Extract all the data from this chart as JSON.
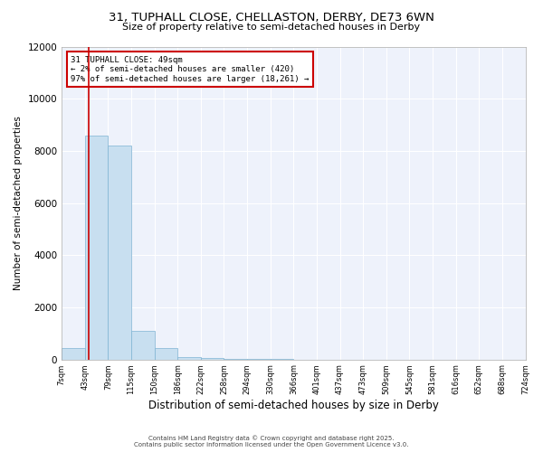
{
  "title_line1": "31, TUPHALL CLOSE, CHELLASTON, DERBY, DE73 6WN",
  "title_line2": "Size of property relative to semi-detached houses in Derby",
  "xlabel": "Distribution of semi-detached houses by size in Derby",
  "ylabel": "Number of semi-detached properties",
  "bin_labels": [
    "7sqm",
    "43sqm",
    "79sqm",
    "115sqm",
    "150sqm",
    "186sqm",
    "222sqm",
    "258sqm",
    "294sqm",
    "330sqm",
    "366sqm",
    "401sqm",
    "437sqm",
    "473sqm",
    "509sqm",
    "545sqm",
    "581sqm",
    "616sqm",
    "652sqm",
    "688sqm",
    "724sqm"
  ],
  "bar_heights": [
    420,
    8600,
    8200,
    1100,
    420,
    100,
    50,
    20,
    8,
    3,
    2,
    1,
    1,
    0,
    0,
    0,
    0,
    0,
    0,
    0
  ],
  "bar_color": "#c8dff0",
  "bar_edge_color": "#7fb3d3",
  "bin_edges": [
    7,
    43,
    79,
    115,
    150,
    186,
    222,
    258,
    294,
    330,
    366,
    401,
    437,
    473,
    509,
    545,
    581,
    616,
    652,
    688,
    724
  ],
  "property_size": 49,
  "property_label": "31 TUPHALL CLOSE: 49sqm",
  "annotation_line2": "← 2% of semi-detached houses are smaller (420)",
  "annotation_line3": "97% of semi-detached houses are larger (18,261) →",
  "red_line_color": "#cc0000",
  "annotation_box_color": "#cc0000",
  "ylim": [
    0,
    12000
  ],
  "yticks": [
    0,
    2000,
    4000,
    6000,
    8000,
    10000,
    12000
  ],
  "background_color": "#eef2fb",
  "footer_line1": "Contains HM Land Registry data © Crown copyright and database right 2025.",
  "footer_line2": "Contains public sector information licensed under the Open Government Licence v3.0."
}
